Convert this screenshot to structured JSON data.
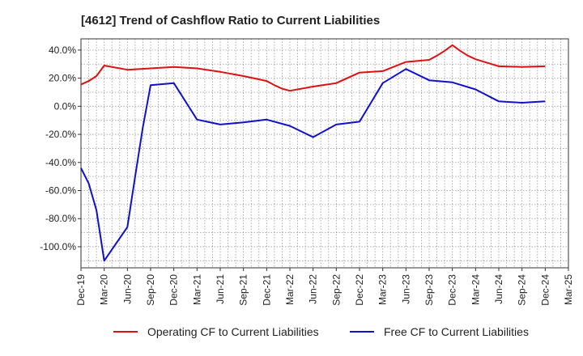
{
  "chart_data": {
    "type": "line",
    "title": "[4612]  Trend of Cashflow Ratio to Current Liabilities",
    "xlabel": "",
    "ylabel": "",
    "x_tick_labels": [
      "Dec-19",
      "Mar-20",
      "Jun-20",
      "Sep-20",
      "Dec-20",
      "Mar-21",
      "Jun-21",
      "Sep-21",
      "Dec-21",
      "Mar-22",
      "Jun-22",
      "Sep-22",
      "Dec-22",
      "Mar-23",
      "Jun-23",
      "Sep-23",
      "Dec-23",
      "Mar-24",
      "Jun-24",
      "Sep-24",
      "Dec-24",
      "Mar-25"
    ],
    "y_ticks": [
      40,
      20,
      0,
      -20,
      -40,
      -60,
      -80,
      -100
    ],
    "y_tick_labels": [
      "40.0%",
      "20.0%",
      "0.0%",
      "-20.0%",
      "-40.0%",
      "-60.0%",
      "-80.0%",
      "-100.0%"
    ],
    "ylim": [
      -115,
      48
    ],
    "grid": true,
    "legend_position": "bottom",
    "series": [
      {
        "name": "Operating CF to Current Liabilities",
        "color": "#dd1111",
        "x": [
          "Dec-19",
          "Jan-20",
          "Feb-20",
          "Mar-20",
          "Jun-20",
          "Sep-20",
          "Dec-20",
          "Mar-21",
          "Jun-21",
          "Sep-21",
          "Dec-21",
          "Jan-22",
          "Feb-22",
          "Mar-22",
          "Jun-22",
          "Sep-22",
          "Dec-22",
          "Mar-23",
          "Jun-23",
          "Sep-23",
          "Oct-23",
          "Nov-23",
          "Dec-23",
          "Jan-24",
          "Feb-24",
          "Mar-24",
          "Jun-24",
          "Sep-24",
          "Dec-24"
        ],
        "values": [
          15.5,
          18,
          21.5,
          29,
          26,
          27,
          28,
          27,
          24.5,
          21.5,
          18,
          15,
          12.5,
          11,
          14,
          16.5,
          24,
          25,
          31.5,
          33,
          36,
          39.5,
          43.5,
          39.5,
          36,
          33.5,
          28.5,
          28,
          28.5
        ]
      },
      {
        "name": "Free CF to Current Liabilities",
        "color": "#1111cc",
        "x": [
          "Dec-19",
          "Jan-20",
          "Feb-20",
          "Mar-20",
          "Apr-20",
          "May-20",
          "Jun-20",
          "Jul-20",
          "Aug-20",
          "Sep-20",
          "Dec-20",
          "Mar-21",
          "Jun-21",
          "Sep-21",
          "Dec-21",
          "Mar-22",
          "Jun-22",
          "Sep-22",
          "Dec-22",
          "Mar-23",
          "Jun-23",
          "Sep-23",
          "Dec-23",
          "Mar-24",
          "Jun-24",
          "Sep-24",
          "Dec-24"
        ],
        "values": [
          -44,
          -55,
          -74,
          -110,
          -102,
          -94,
          -86,
          -50,
          -15,
          15,
          16.5,
          -9.5,
          -13,
          -11.5,
          -9.5,
          -14,
          -22,
          -13,
          -11,
          16.5,
          26.5,
          18.5,
          17,
          12,
          3.5,
          2.5,
          3.5
        ]
      }
    ]
  }
}
